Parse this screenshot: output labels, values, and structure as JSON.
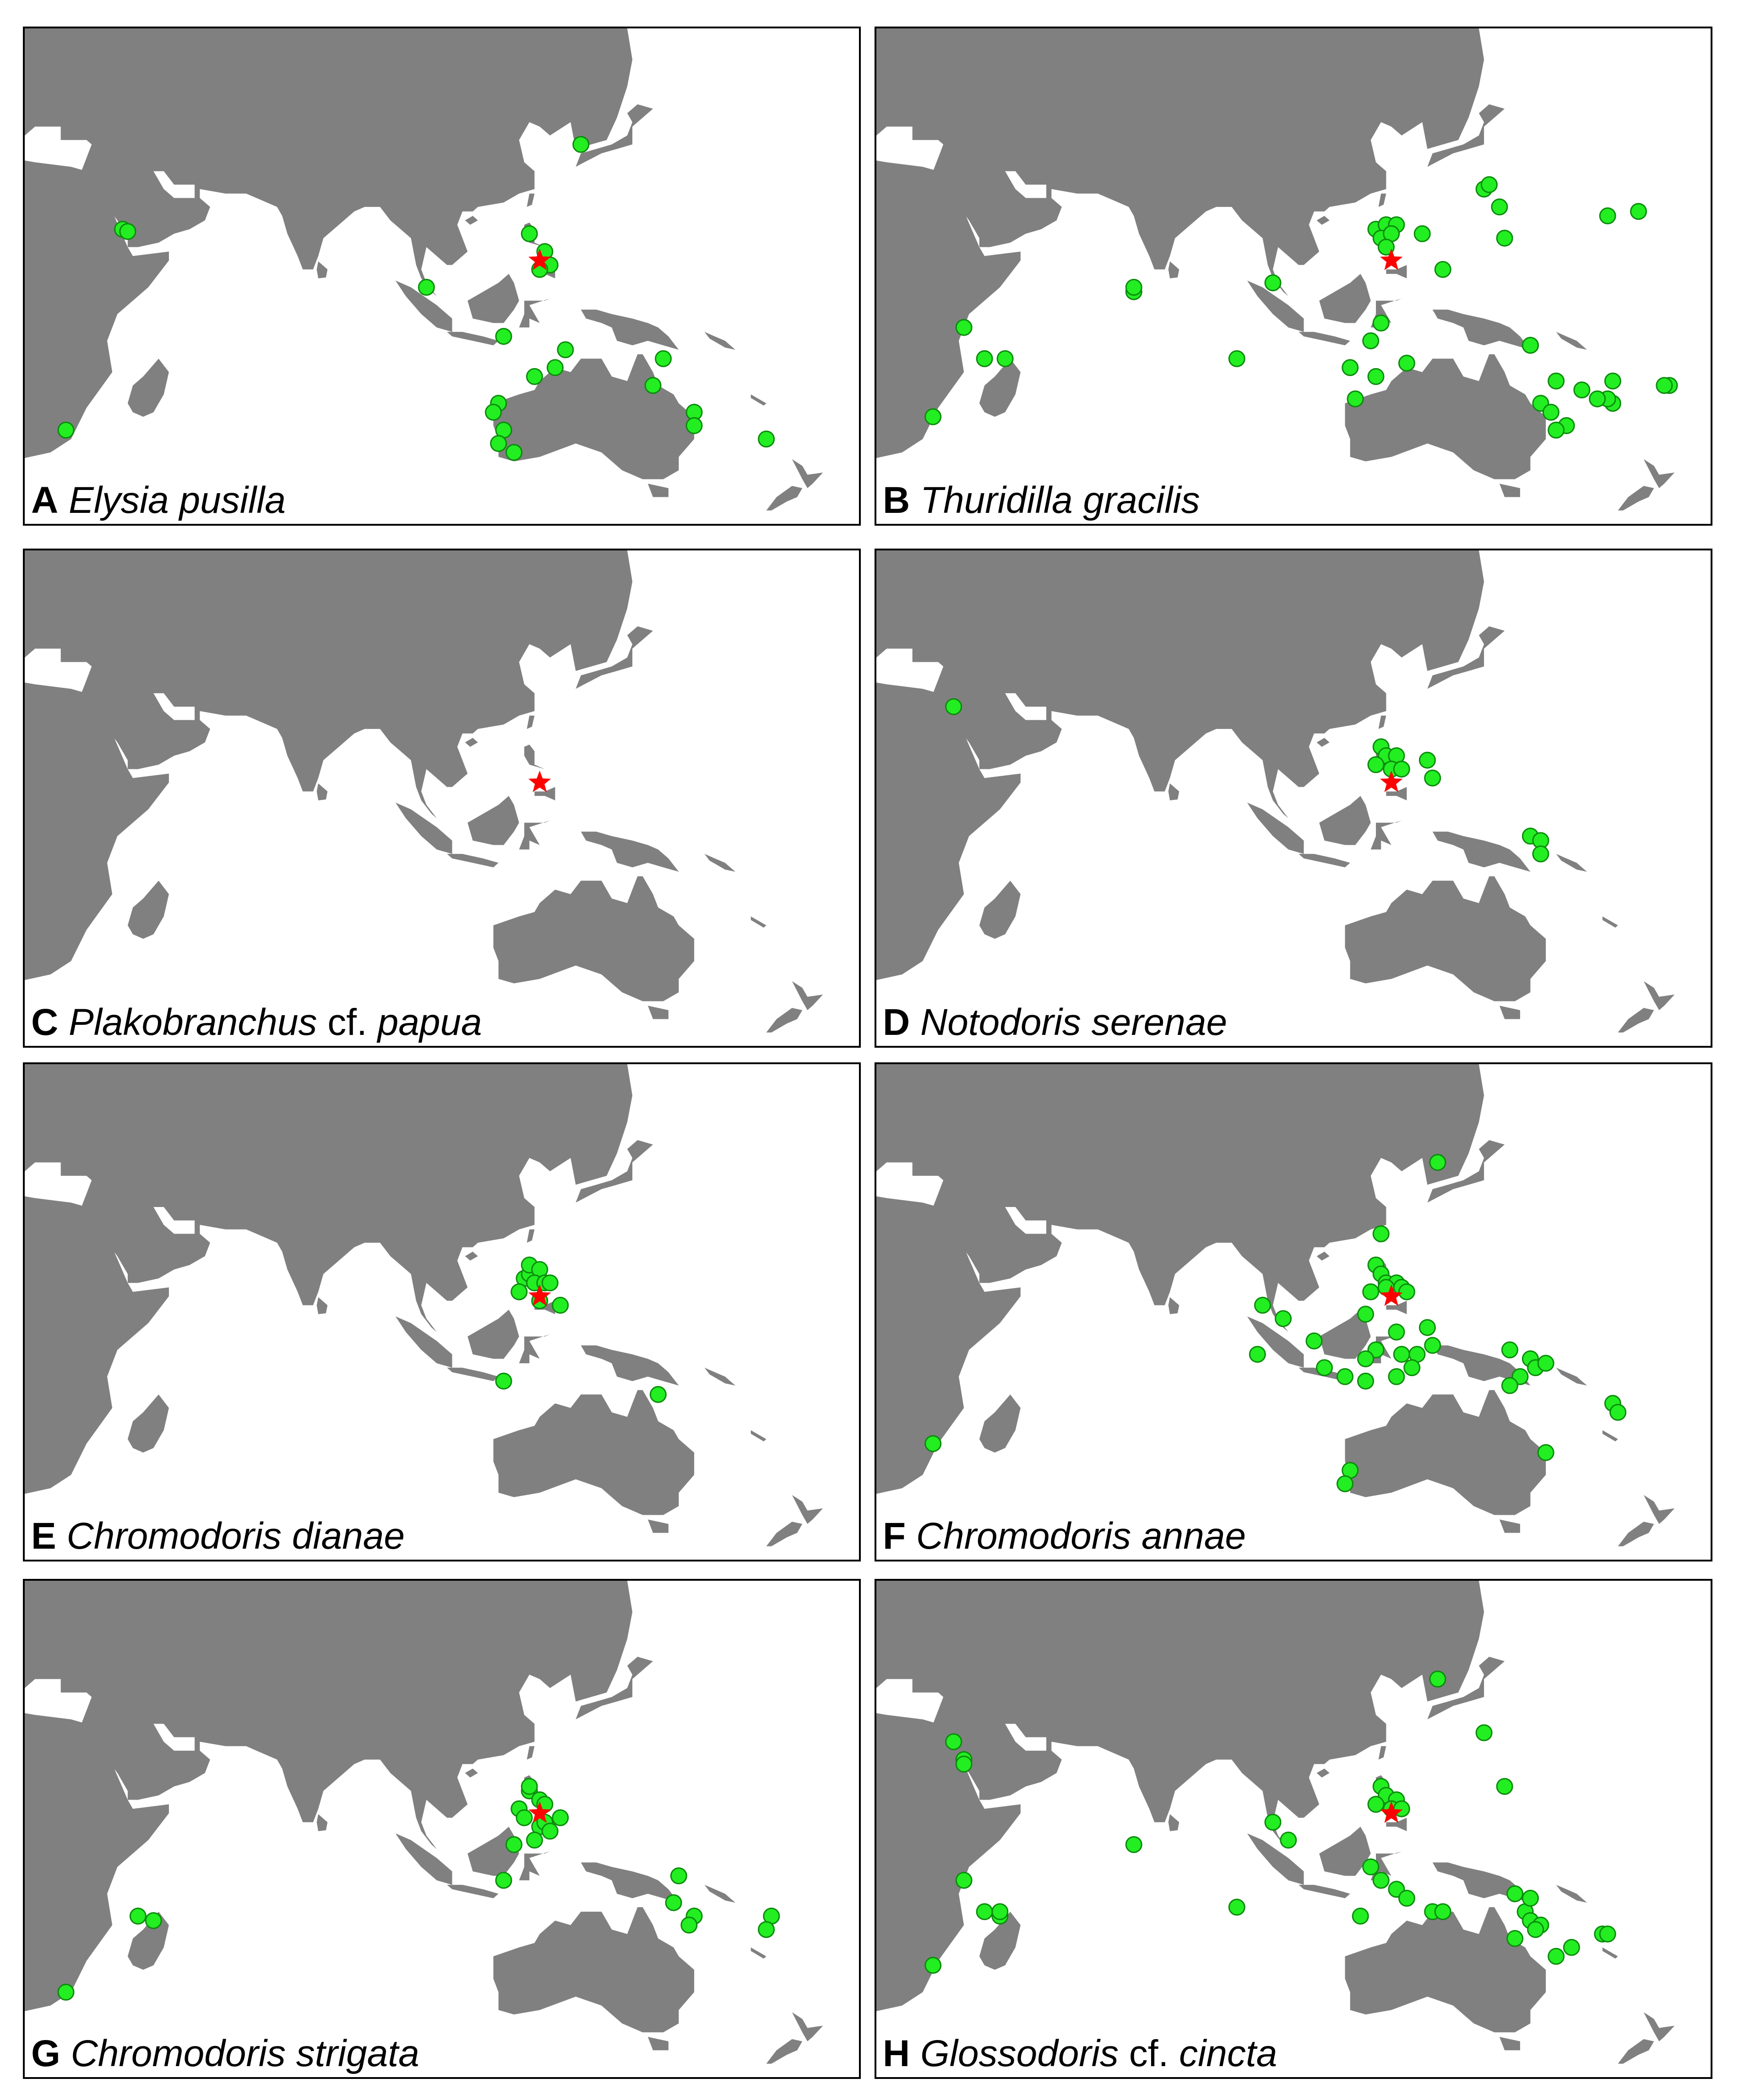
{
  "colors": {
    "land": "#808080",
    "sea": "#ffffff",
    "record_point": "#22ee22",
    "record_point_outline": "#0b8a0b",
    "type_locality_star": "#ff0000",
    "frame": "#000000"
  },
  "icons": {
    "record": "green-dot",
    "type_locality": "red-star"
  },
  "panels": [
    {
      "id": "A",
      "letter": "A",
      "genus": "Elysia",
      "qualifier": "",
      "species": "pusilla",
      "star": [
        123,
        10
      ],
      "points": [
        [
          42,
          17
        ],
        [
          43,
          16.5
        ],
        [
          131,
          36
        ],
        [
          124,
          12
        ],
        [
          125,
          9
        ],
        [
          121,
          16
        ],
        [
          123,
          8
        ],
        [
          101,
          4
        ],
        [
          116,
          -7
        ],
        [
          128,
          -10
        ],
        [
          122,
          -16
        ],
        [
          126,
          -14
        ],
        [
          147,
          -12
        ],
        [
          145,
          -18
        ],
        [
          115,
          -22
        ],
        [
          114,
          -24
        ],
        [
          116,
          -28
        ],
        [
          115,
          -31
        ],
        [
          118,
          -33
        ],
        [
          153,
          -24
        ],
        [
          153,
          -27
        ],
        [
          167,
          -30
        ],
        [
          31,
          -28
        ]
      ]
    },
    {
      "id": "B",
      "letter": "B",
      "genus": "Thuridilla",
      "qualifier": "",
      "species": "gracilis",
      "star": [
        123,
        10
      ],
      "points": [
        [
          73,
          3
        ],
        [
          73,
          4
        ],
        [
          40,
          -5
        ],
        [
          44,
          -12
        ],
        [
          48,
          -12
        ],
        [
          34,
          -25
        ],
        [
          100,
          5
        ],
        [
          93,
          -12
        ],
        [
          120,
          17
        ],
        [
          122,
          18
        ],
        [
          121,
          15
        ],
        [
          124,
          18
        ],
        [
          123,
          16
        ],
        [
          129,
          16
        ],
        [
          122,
          13
        ],
        [
          133,
          8
        ],
        [
          145,
          15
        ],
        [
          144,
          22
        ],
        [
          141,
          26
        ],
        [
          142,
          27
        ],
        [
          165,
          20
        ],
        [
          171,
          21
        ],
        [
          121,
          -4
        ],
        [
          119,
          -8
        ],
        [
          115,
          -14
        ],
        [
          120,
          -16
        ],
        [
          116,
          -21
        ],
        [
          126,
          -13
        ],
        [
          150,
          -9
        ],
        [
          155,
          -17
        ],
        [
          152,
          -22
        ],
        [
          154,
          -24
        ],
        [
          157,
          -27
        ],
        [
          166,
          -22
        ],
        [
          165,
          -21
        ],
        [
          160,
          -19
        ],
        [
          177,
          -18
        ],
        [
          176,
          -18
        ],
        [
          166,
          -17
        ],
        [
          155,
          -28
        ],
        [
          163,
          -21
        ],
        [
          150,
          -9
        ]
      ]
    },
    {
      "id": "C",
      "letter": "C",
      "genus": "Plakobranchus",
      "qualifier": "cf.",
      "species": "papua",
      "star": [
        123,
        10
      ],
      "points": []
    },
    {
      "id": "D",
      "letter": "D",
      "genus": "Notodoris",
      "qualifier": "",
      "species": "serenae",
      "star": [
        123,
        10
      ],
      "points": [
        [
          38,
          27
        ],
        [
          121,
          18
        ],
        [
          122,
          16
        ],
        [
          124,
          16
        ],
        [
          120,
          14
        ],
        [
          123,
          13
        ],
        [
          125,
          13
        ],
        [
          130,
          15
        ],
        [
          131,
          11
        ],
        [
          150,
          -2
        ],
        [
          152,
          -3
        ],
        [
          152,
          -6
        ]
      ]
    },
    {
      "id": "E",
      "letter": "E",
      "genus": "Chromodoris",
      "qualifier": "",
      "species": "dianae",
      "star": [
        123,
        10
      ],
      "points": [
        [
          120,
          14
        ],
        [
          121,
          15
        ],
        [
          121,
          17
        ],
        [
          123,
          16
        ],
        [
          122,
          13
        ],
        [
          124,
          13
        ],
        [
          125,
          13
        ],
        [
          119,
          11
        ],
        [
          123,
          9
        ],
        [
          127,
          8
        ],
        [
          116,
          -9
        ],
        [
          146,
          -12
        ]
      ]
    },
    {
      "id": "F",
      "letter": "F",
      "genus": "Chromodoris",
      "qualifier": "",
      "species": "annae",
      "star": [
        123,
        10
      ],
      "points": [
        [
          132,
          40
        ],
        [
          121,
          24
        ],
        [
          120,
          17
        ],
        [
          121,
          15
        ],
        [
          122,
          13
        ],
        [
          124,
          13
        ],
        [
          122,
          12
        ],
        [
          125,
          12
        ],
        [
          119,
          11
        ],
        [
          126,
          11
        ],
        [
          98,
          8
        ],
        [
          102,
          5
        ],
        [
          118,
          6
        ],
        [
          108,
          0
        ],
        [
          124,
          2
        ],
        [
          130,
          3
        ],
        [
          120,
          -2
        ],
        [
          118,
          -4
        ],
        [
          125,
          -3
        ],
        [
          128,
          -3
        ],
        [
          131,
          -1
        ],
        [
          97,
          -3
        ],
        [
          110,
          -6
        ],
        [
          118,
          -9
        ],
        [
          114,
          -8
        ],
        [
          124,
          -8
        ],
        [
          127,
          -6
        ],
        [
          146,
          -2
        ],
        [
          150,
          -4
        ],
        [
          151,
          -6
        ],
        [
          148,
          -8
        ],
        [
          153,
          -5
        ],
        [
          146,
          -10
        ],
        [
          166,
          -14
        ],
        [
          167,
          -16
        ],
        [
          153,
          -25
        ],
        [
          115,
          -29
        ],
        [
          114,
          -32
        ],
        [
          34,
          -23
        ]
      ]
    },
    {
      "id": "G",
      "letter": "G",
      "genus": "Chromodoris",
      "qualifier": "",
      "species": "strigata",
      "star": [
        123,
        10
      ],
      "points": [
        [
          121,
          15
        ],
        [
          121,
          16
        ],
        [
          123,
          13
        ],
        [
          124,
          12
        ],
        [
          119,
          11
        ],
        [
          120,
          9
        ],
        [
          127,
          9
        ],
        [
          123,
          7
        ],
        [
          124,
          8
        ],
        [
          125,
          6
        ],
        [
          122,
          4
        ],
        [
          118,
          3
        ],
        [
          116,
          -5
        ],
        [
          150,
          -4
        ],
        [
          149,
          -10
        ],
        [
          153,
          -13
        ],
        [
          152,
          -15
        ],
        [
          168,
          -13
        ],
        [
          167,
          -16
        ],
        [
          45,
          -13
        ],
        [
          48,
          -14
        ],
        [
          31,
          -30
        ]
      ]
    },
    {
      "id": "H",
      "letter": "H",
      "genus": "Glossodoris",
      "qualifier": "cf.",
      "species": "cincta",
      "star": [
        123,
        10
      ],
      "points": [
        [
          38,
          26
        ],
        [
          40,
          22
        ],
        [
          40,
          21
        ],
        [
          132,
          40
        ],
        [
          141,
          28
        ],
        [
          145,
          16
        ],
        [
          121,
          16
        ],
        [
          122,
          14
        ],
        [
          124,
          13
        ],
        [
          123,
          11
        ],
        [
          120,
          12
        ],
        [
          125,
          11
        ],
        [
          100,
          8
        ],
        [
          103,
          4
        ],
        [
          73,
          3
        ],
        [
          93,
          -11
        ],
        [
          40,
          -5
        ],
        [
          44,
          -12
        ],
        [
          47,
          -13
        ],
        [
          47,
          -12
        ],
        [
          34,
          -24
        ],
        [
          119,
          -2
        ],
        [
          121,
          -5
        ],
        [
          124,
          -7
        ],
        [
          126,
          -9
        ],
        [
          117,
          -13
        ],
        [
          131,
          -12
        ],
        [
          133,
          -12
        ],
        [
          147,
          -8
        ],
        [
          149,
          -12
        ],
        [
          150,
          -14
        ],
        [
          152,
          -15
        ],
        [
          151,
          -16
        ],
        [
          147,
          -18
        ],
        [
          155,
          -22
        ],
        [
          158,
          -20
        ],
        [
          164,
          -17
        ],
        [
          165,
          -17
        ],
        [
          150,
          -9
        ]
      ]
    }
  ]
}
